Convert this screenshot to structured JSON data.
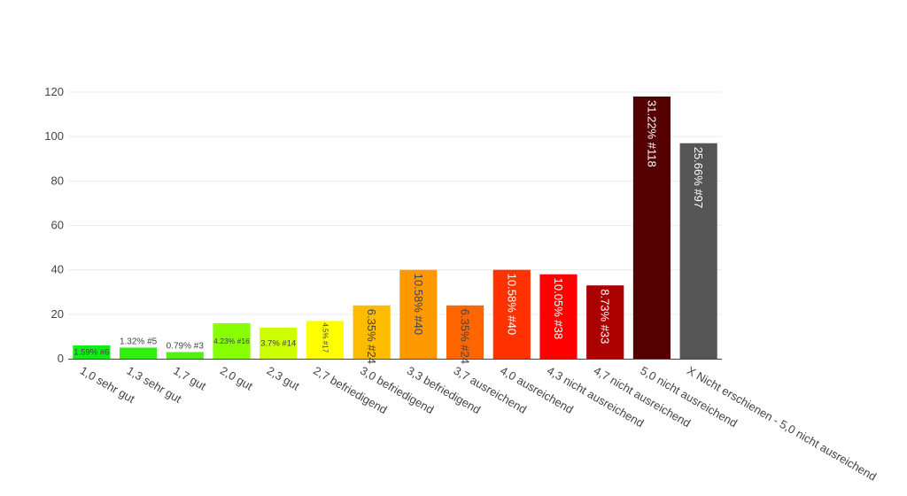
{
  "chart_data": {
    "type": "bar",
    "title": "",
    "xlabel": "",
    "ylabel": "",
    "ylim": [
      0,
      120
    ],
    "yticks": [
      0,
      20,
      40,
      60,
      80,
      100,
      120
    ],
    "grid": true,
    "categories": [
      "1,0 sehr gut",
      "1,3 sehr gut",
      "1,7 gut",
      "2,0 gut",
      "2,3 gut",
      "2,7 befriedigend",
      "3,0 befriedigend",
      "3,3 befriedigend",
      "3,7 ausreichend",
      "4,0 ausreichend",
      "4,3 nicht ausreichend",
      "4,7 nicht ausreichend",
      "5,0 nicht ausreichend",
      "X Nicht erschienen - 5,0 nicht ausreichend"
    ],
    "values": [
      6,
      5,
      3,
      16,
      14,
      17,
      24,
      40,
      24,
      40,
      38,
      33,
      118,
      97
    ],
    "data_labels": [
      "1.59% #6",
      "1.32% #5",
      "0.79% #3",
      "4.23% #16",
      "3.7% #14",
      "4.5% #17",
      "6.35% #24",
      "10.58% #40",
      "6.35% #24",
      "10.58% #40",
      "10.05% #38",
      "8.73% #33",
      "31.22% #118",
      "25.66% #97"
    ],
    "colors": [
      "#11ee11",
      "#33ee11",
      "#55ee11",
      "#88ff00",
      "#ccff00",
      "#ffff00",
      "#ffbb00",
      "#ff9900",
      "#ff6600",
      "#ff3300",
      "#ff0000",
      "#aa0000",
      "#550000",
      "#555555"
    ],
    "label_colors": [
      "#444444",
      "#444444",
      "#444444",
      "#444444",
      "#444444",
      "#444444",
      "#444444",
      "#444444",
      "#444444",
      "#ffffff",
      "#ffffff",
      "#ffffff",
      "#ffffff",
      "#ffffff"
    ]
  }
}
